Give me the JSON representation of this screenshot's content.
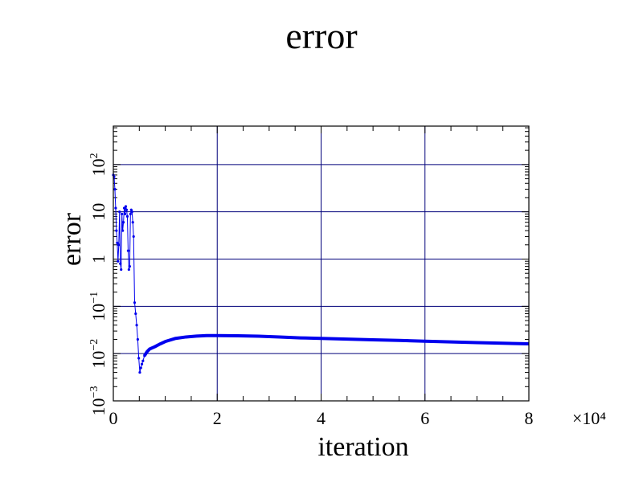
{
  "chart_data": {
    "type": "line",
    "title": "error",
    "xlabel": "iteration",
    "ylabel": "error",
    "x_multiplier": "×10⁴",
    "xlim": [
      0,
      80000
    ],
    "ylim": [
      0.001,
      650
    ],
    "y_scale": "log",
    "grid": true,
    "x_ticks": [
      {
        "value": 0,
        "label": "0"
      },
      {
        "value": 20000,
        "label": "2"
      },
      {
        "value": 40000,
        "label": "4"
      },
      {
        "value": 60000,
        "label": "6"
      },
      {
        "value": 80000,
        "label": "8"
      }
    ],
    "y_ticks": [
      {
        "value": 0.001,
        "base": "10",
        "exp": "−3"
      },
      {
        "value": 0.01,
        "base": "10",
        "exp": "−2"
      },
      {
        "value": 0.1,
        "base": "10",
        "exp": "−1"
      },
      {
        "value": 1,
        "base": "1",
        "exp": ""
      },
      {
        "value": 10,
        "base": "10",
        "exp": ""
      },
      {
        "value": 100,
        "base": "10",
        "exp": "2"
      }
    ],
    "series": [
      {
        "color": "#0000ee",
        "x": [
          0,
          150,
          300,
          450,
          600,
          750,
          900,
          1050,
          1200,
          1350,
          1500,
          1650,
          1800,
          1950,
          2100,
          2250,
          2400,
          2550,
          2700,
          2850,
          3000,
          3150,
          3300,
          3450,
          3600,
          3750,
          3900,
          4100,
          4300,
          4500,
          4700,
          4900,
          5100,
          5300,
          5500,
          5700,
          6000,
          6500,
          7000,
          8000,
          9000,
          10000,
          12000,
          14000,
          16000,
          18000,
          20000,
          24000,
          28000,
          32000,
          36000,
          40000,
          45000,
          50000,
          55000,
          60000,
          65000,
          70000,
          75000,
          80000
        ],
        "y": [
          60,
          55,
          30,
          12,
          4,
          2.2,
          0.9,
          2,
          10,
          0.8,
          0.6,
          9,
          4,
          6,
          12,
          9,
          13,
          11,
          8,
          1.5,
          0.6,
          0.7,
          9,
          11,
          10,
          6,
          3,
          0.12,
          0.07,
          0.04,
          0.02,
          0.008,
          0.004,
          0.005,
          0.006,
          0.007,
          0.009,
          0.011,
          0.0125,
          0.014,
          0.016,
          0.018,
          0.021,
          0.0225,
          0.0235,
          0.024,
          0.024,
          0.0238,
          0.0233,
          0.0225,
          0.0215,
          0.021,
          0.0203,
          0.0196,
          0.019,
          0.0183,
          0.0177,
          0.0171,
          0.0166,
          0.0161
        ]
      }
    ]
  }
}
